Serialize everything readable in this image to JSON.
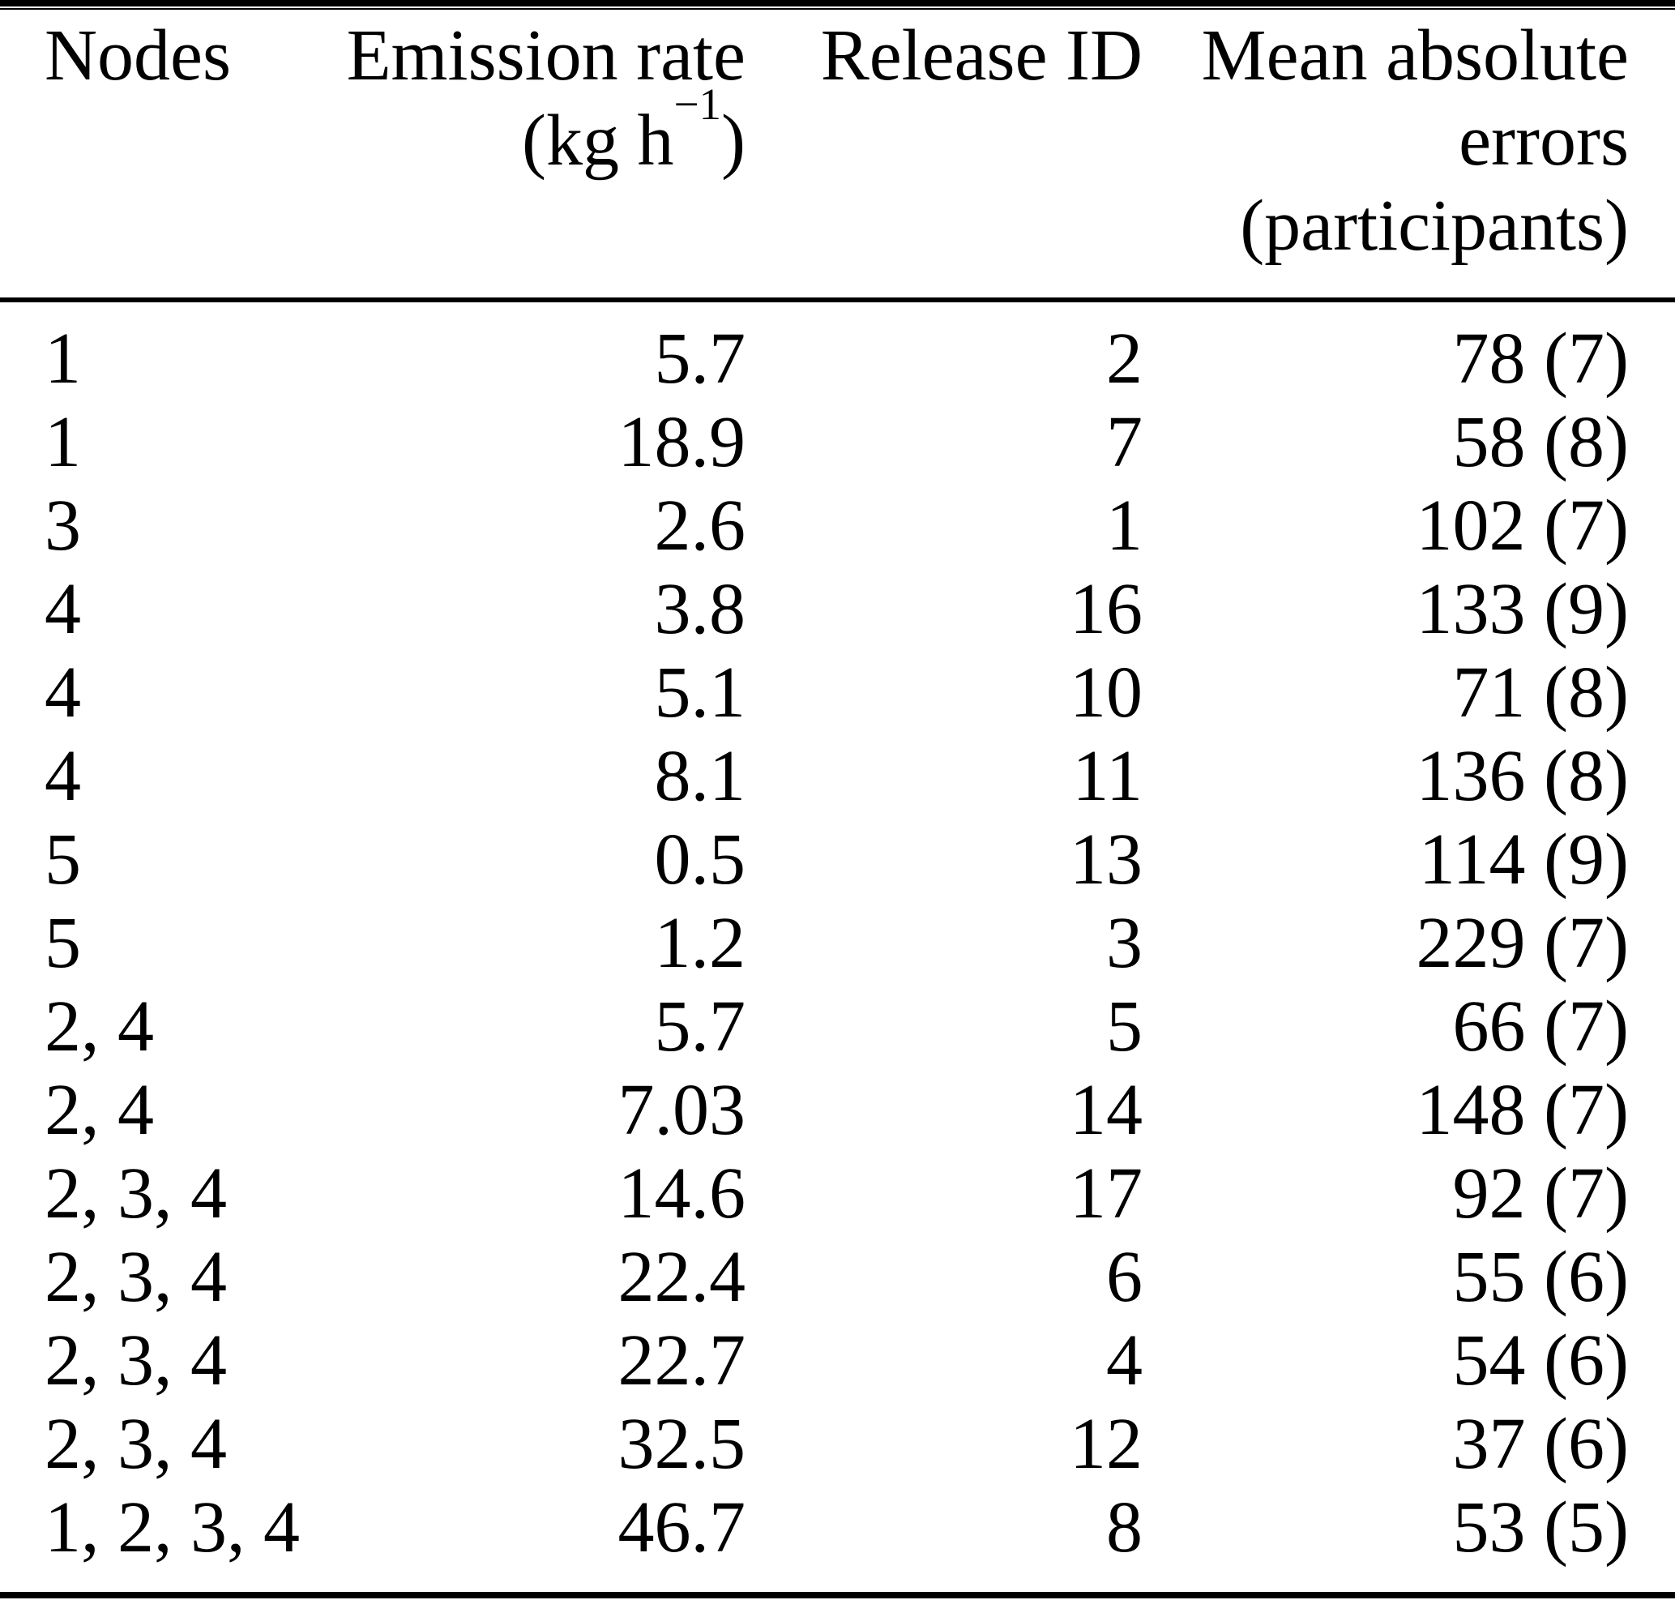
{
  "table": {
    "header": {
      "nodes_label": "Nodes",
      "emission_rate_label": "Emission rate",
      "emission_rate_unit_prefix": "(kg h",
      "emission_rate_unit_exponent": "−1",
      "emission_rate_unit_suffix": ")",
      "release_id_label": "Release ID",
      "mae_line1": "Mean absolute",
      "mae_line2": "errors",
      "mae_line3": "(participants)"
    },
    "rows": [
      {
        "nodes": "1",
        "emission_rate": "5.7",
        "release_id": "2",
        "mean_absolute_errors": "78 (7)"
      },
      {
        "nodes": "1",
        "emission_rate": "18.9",
        "release_id": "7",
        "mean_absolute_errors": "58 (8)"
      },
      {
        "nodes": "3",
        "emission_rate": "2.6",
        "release_id": "1",
        "mean_absolute_errors": "102 (7)"
      },
      {
        "nodes": "4",
        "emission_rate": "3.8",
        "release_id": "16",
        "mean_absolute_errors": "133 (9)"
      },
      {
        "nodes": "4",
        "emission_rate": "5.1",
        "release_id": "10",
        "mean_absolute_errors": "71 (8)"
      },
      {
        "nodes": "4",
        "emission_rate": "8.1",
        "release_id": "11",
        "mean_absolute_errors": "136 (8)"
      },
      {
        "nodes": "5",
        "emission_rate": "0.5",
        "release_id": "13",
        "mean_absolute_errors": "114 (9)"
      },
      {
        "nodes": "5",
        "emission_rate": "1.2",
        "release_id": "3",
        "mean_absolute_errors": "229 (7)"
      },
      {
        "nodes": "2, 4",
        "emission_rate": "5.7",
        "release_id": "5",
        "mean_absolute_errors": "66 (7)"
      },
      {
        "nodes": "2, 4",
        "emission_rate": "7.03",
        "release_id": "14",
        "mean_absolute_errors": "148 (7)"
      },
      {
        "nodes": "2, 3, 4",
        "emission_rate": "14.6",
        "release_id": "17",
        "mean_absolute_errors": "92 (7)"
      },
      {
        "nodes": "2, 3, 4",
        "emission_rate": "22.4",
        "release_id": "6",
        "mean_absolute_errors": "55 (6)"
      },
      {
        "nodes": "2, 3, 4",
        "emission_rate": "22.7",
        "release_id": "4",
        "mean_absolute_errors": "54 (6)"
      },
      {
        "nodes": "2, 3, 4",
        "emission_rate": "32.5",
        "release_id": "12",
        "mean_absolute_errors": "37 (6)"
      },
      {
        "nodes": "1, 2, 3, 4",
        "emission_rate": "46.7",
        "release_id": "8",
        "mean_absolute_errors": "53 (5)"
      }
    ]
  },
  "colors": {
    "text": "#000000",
    "background": "#ffffff",
    "rule": "#000000"
  }
}
